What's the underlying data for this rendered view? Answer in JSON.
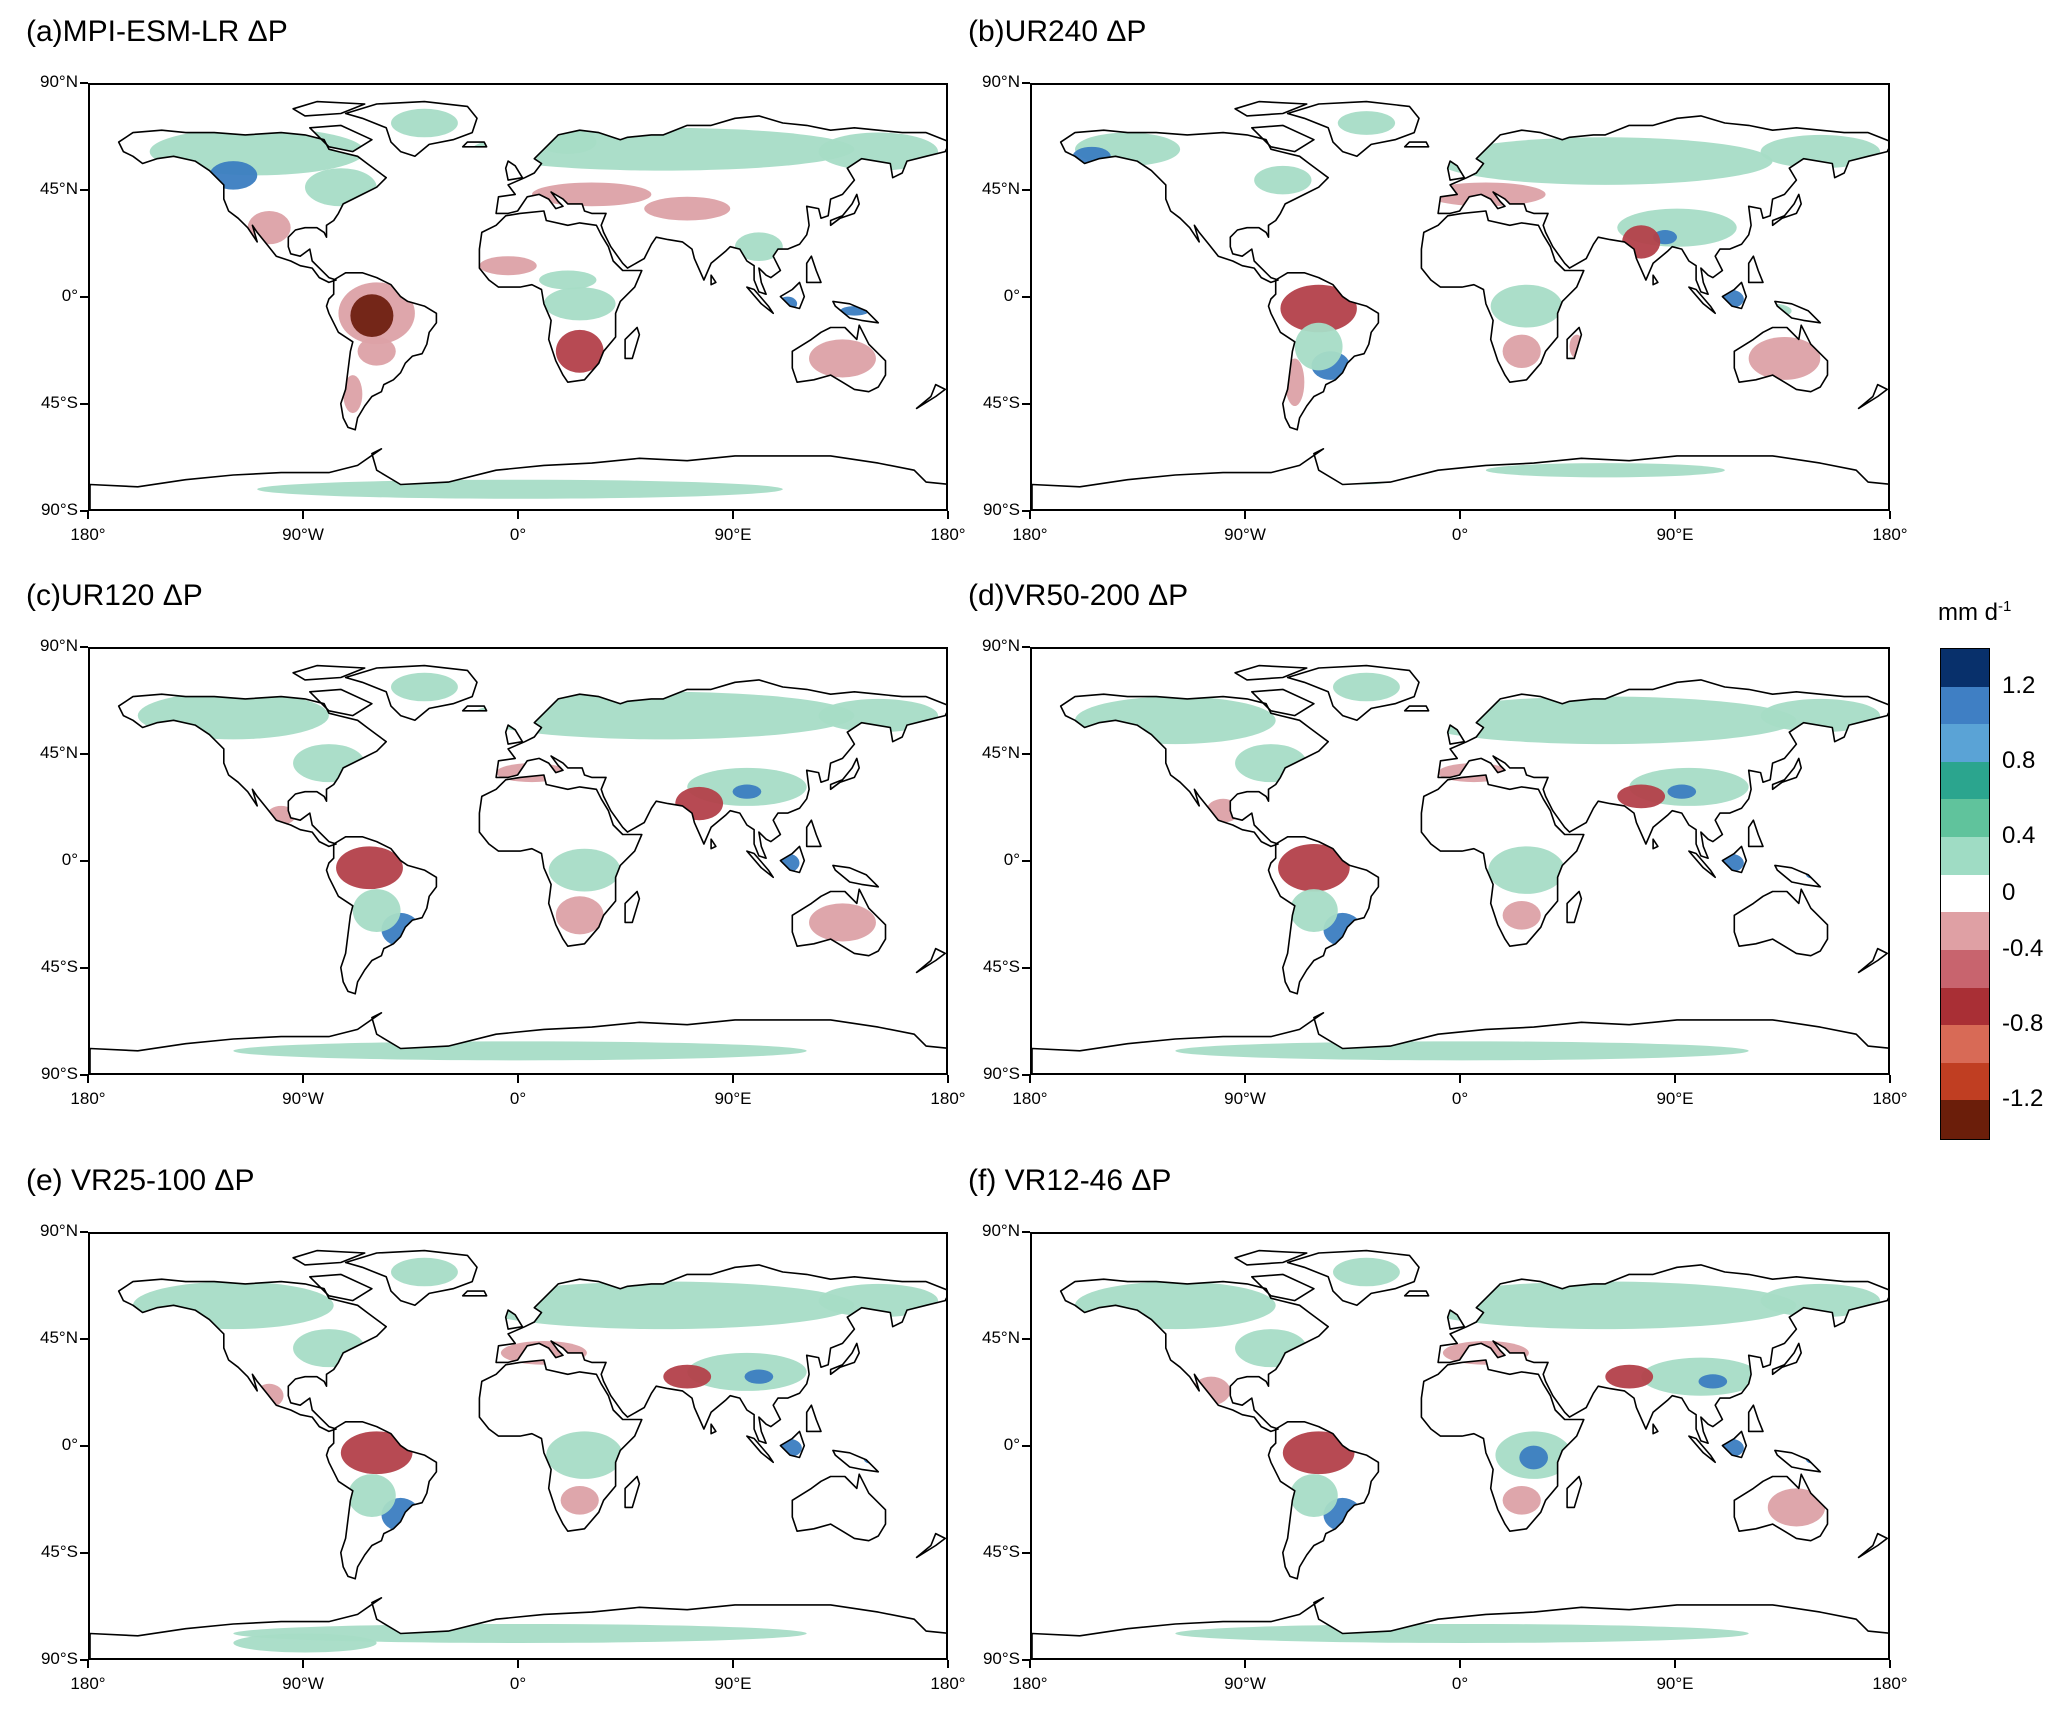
{
  "panels": [
    {
      "id": "a",
      "title": "(a)MPI-ESM-LR ΔP"
    },
    {
      "id": "b",
      "title": "(b)UR240 ΔP"
    },
    {
      "id": "c",
      "title": "(c)UR120 ΔP"
    },
    {
      "id": "d",
      "title": "(d)VR50-200 ΔP"
    },
    {
      "id": "e",
      "title": "(e) VR25-100 ΔP"
    },
    {
      "id": "f",
      "title": "(f) VR12-46 ΔP"
    }
  ],
  "lat_ticks": [
    "90°N",
    "45°N",
    "0°",
    "45°S",
    "90°S"
  ],
  "lon_ticks": [
    "180°",
    "90°W",
    "0°",
    "90°E",
    "180°"
  ],
  "colorbar": {
    "unit_base": "mm d",
    "unit_exp": "-1",
    "labels": [
      "1.2",
      "0.8",
      "0.4",
      "0",
      "-0.4",
      "-0.8",
      "-1.2"
    ],
    "colors_top_to_bottom": [
      "#08306b",
      "#3f7fc4",
      "#5aa3d6",
      "#2ba58e",
      "#60c39c",
      "#9fdcc4",
      "#ffffff",
      "#dfa0a4",
      "#c8646e",
      "#a92f35",
      "#d86a56",
      "#c03e22",
      "#6b1e0a"
    ]
  },
  "legend_colors": {
    "land_wet": "#a6dcc6",
    "land_wet_strong": "#5dbd98",
    "land_very_wet": "#3b7dc1",
    "land_dry": "#dca1a6",
    "land_dry_strong": "#b3404a",
    "land_very_dry": "#6e1f10",
    "coastline": "#000000"
  }
}
